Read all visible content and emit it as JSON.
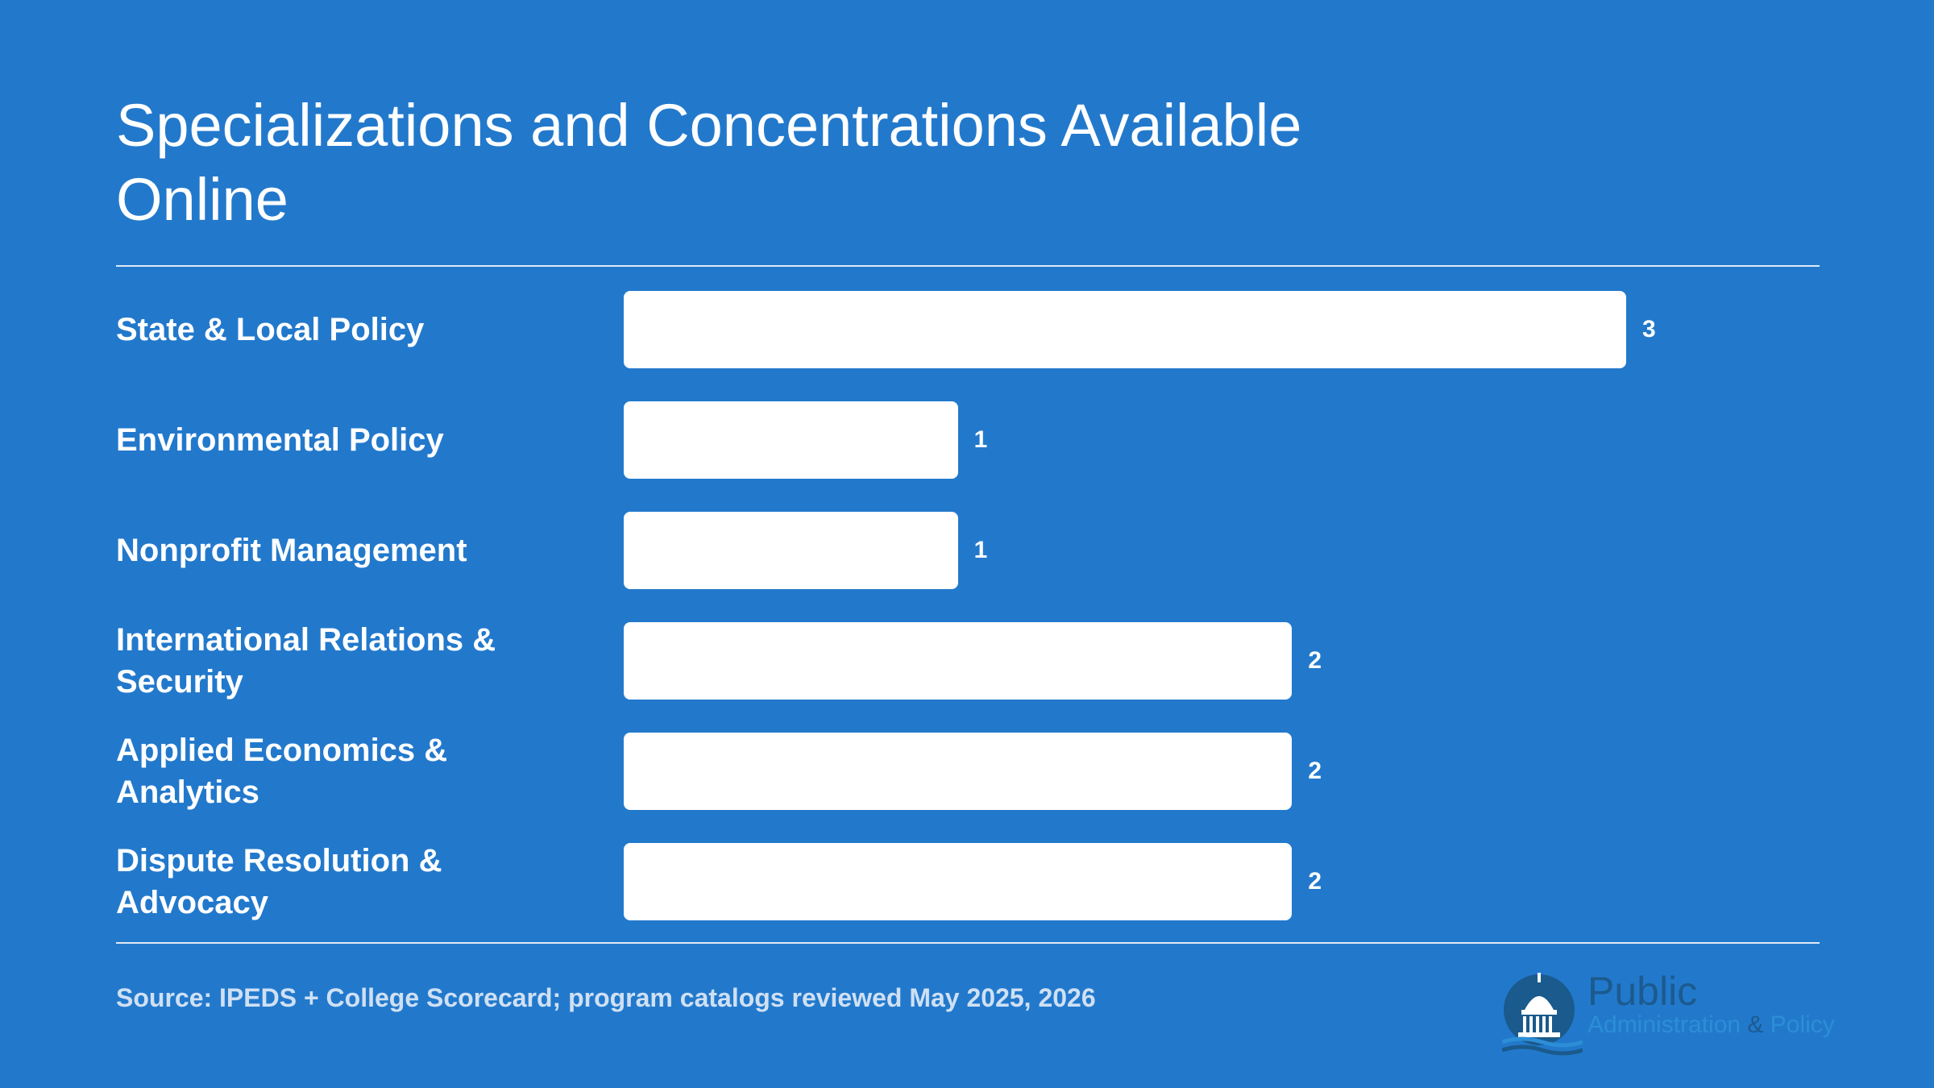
{
  "chart_data": {
    "type": "bar",
    "orientation": "horizontal",
    "title": "Specializations and Concentrations Available Online",
    "categories": [
      "State & Local Policy",
      "Environmental Policy",
      "Nonprofit Management",
      "International Relations & Security",
      "Applied Economics & Analytics",
      "Dispute Resolution & Advocacy"
    ],
    "values": [
      3,
      1,
      1,
      2,
      2,
      2
    ],
    "value_labels": [
      "3",
      "1",
      "1",
      "2",
      "2",
      "2"
    ],
    "xlim": [
      0,
      3
    ],
    "grid": false,
    "legend": "none",
    "bar_color": "#ffffff",
    "background_color": "#2279cc"
  },
  "source": "Source: IPEDS + College Scorecard; program catalogs reviewed May 2025, 2026",
  "logo": {
    "text_main": "Public",
    "text_sub_1": "Administration",
    "text_sub_amp": "&",
    "text_sub_2": "Policy",
    "icon": "capitol-dome-icon"
  }
}
